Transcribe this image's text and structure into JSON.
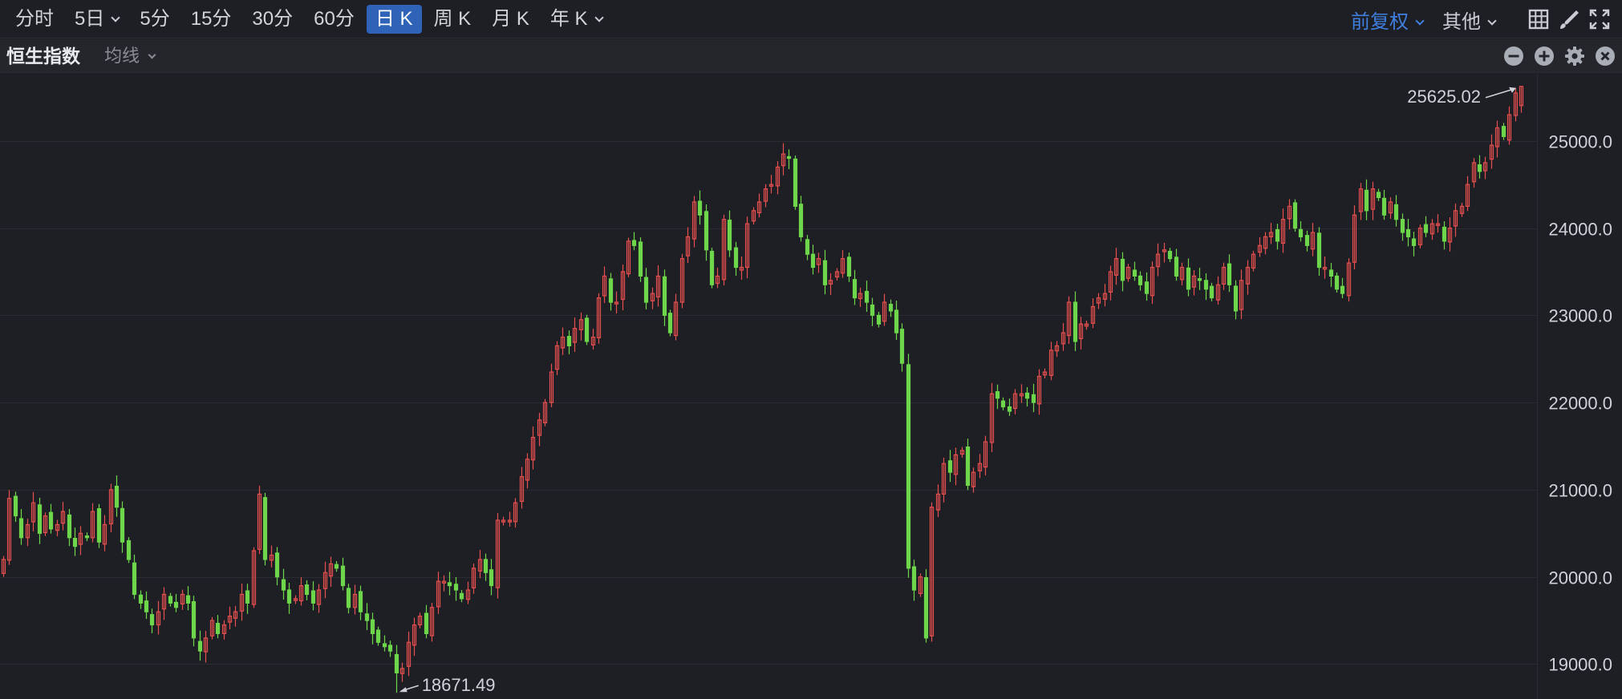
{
  "toolbar": {
    "timeframes": [
      "分时",
      "5日",
      "5分",
      "15分",
      "30分",
      "60分",
      "日 K",
      "周 K",
      "月 K",
      "年 K"
    ],
    "active_timeframe": "日 K",
    "adjustment_label": "前复权",
    "other_label": "其他",
    "icons": [
      "layout-icon",
      "draw-icon",
      "fullscreen-icon"
    ]
  },
  "subheader": {
    "symbol": "恒生指数",
    "indicator_label": "均线",
    "icons": [
      "zoom-out-icon",
      "zoom-in-icon",
      "settings-icon",
      "close-icon"
    ]
  },
  "colors": {
    "background": "#1e1f24",
    "up": "#e84f4f",
    "down": "#6dd64b",
    "accent": "#2f63b8",
    "grid": "#2a2c33"
  },
  "chart_data": {
    "type": "candlestick",
    "ylim": [
      18600,
      25770
    ],
    "y_ticks": [
      "25000.0",
      "24000.0",
      "23000.0",
      "22000.0",
      "21000.0",
      "20000.0",
      "19000.0"
    ],
    "y_tick_values": [
      25000,
      24000,
      23000,
      22000,
      21000,
      20000,
      19000
    ],
    "grid": true,
    "high_label": "25625.02",
    "high_value": 25625.02,
    "low_label": "18671.49",
    "low_value": 18671.49,
    "closes": [
      20200,
      20900,
      20700,
      20450,
      20600,
      20850,
      20500,
      20700,
      20550,
      20600,
      20750,
      20450,
      20350,
      20500,
      20450,
      20750,
      20400,
      20600,
      21000,
      20800,
      20400,
      20200,
      19800,
      19700,
      19600,
      19450,
      19600,
      19800,
      19700,
      19650,
      19800,
      19700,
      19300,
      19150,
      19300,
      19500,
      19350,
      19450,
      19550,
      19600,
      19800,
      19700,
      20300,
      20950,
      20200,
      20250,
      20000,
      19850,
      19700,
      19750,
      19900,
      19800,
      19700,
      19850,
      20050,
      20150,
      20100,
      19900,
      19650,
      19800,
      19600,
      19500,
      19350,
      19250,
      19200,
      19150,
      18900,
      18950,
      19250,
      19450,
      19550,
      19350,
      19650,
      19950,
      19950,
      19900,
      19850,
      19750,
      19850,
      20100,
      20200,
      20050,
      19900,
      20650,
      20650,
      20650,
      20850,
      21150,
      21350,
      21600,
      21800,
      22000,
      22350,
      22650,
      22750,
      22650,
      22850,
      22950,
      22700,
      22750,
      23200,
      23450,
      23150,
      23150,
      23500,
      23850,
      23800,
      23450,
      23150,
      23250,
      23450,
      23000,
      22800,
      23150,
      23650,
      23900,
      24300,
      24150,
      23750,
      23350,
      23450,
      24100,
      23750,
      23550,
      23550,
      24050,
      24200,
      24300,
      24450,
      24500,
      24700,
      24850,
      24800,
      24250,
      23900,
      23700,
      23550,
      23650,
      23350,
      23400,
      23500,
      23650,
      23450,
      23200,
      23250,
      23150,
      23000,
      22900,
      23150,
      23050,
      22800,
      22450,
      20100,
      19850,
      20000,
      19300,
      20800,
      20950,
      21300,
      21200,
      21400,
      21450,
      21050,
      21200,
      21300,
      21550,
      22100,
      22050,
      21950,
      21900,
      22100,
      22100,
      22050,
      22000,
      22300,
      22350,
      22600,
      22650,
      22800,
      23150,
      22700,
      22900,
      22900,
      23100,
      23200,
      23250,
      23500,
      23650,
      23400,
      23550,
      23450,
      23350,
      23250,
      23550,
      23700,
      23750,
      23650,
      23450,
      23550,
      23300,
      23450,
      23400,
      23300,
      23200,
      23350,
      23550,
      23350,
      23050,
      23400,
      23550,
      23700,
      23800,
      23900,
      23950,
      23850,
      24100,
      24250,
      24000,
      23900,
      23800,
      23950,
      23550,
      23550,
      23450,
      23300,
      23250,
      23600,
      24150,
      24450,
      24200,
      24450,
      24350,
      24150,
      24300,
      24100,
      23950,
      23900,
      23800,
      24000,
      23950,
      24050,
      24050,
      23850,
      24000,
      24200,
      24250,
      24500,
      24750,
      24650,
      24750,
      24950,
      25150,
      25050,
      25300,
      25550,
      25625.02
    ]
  }
}
